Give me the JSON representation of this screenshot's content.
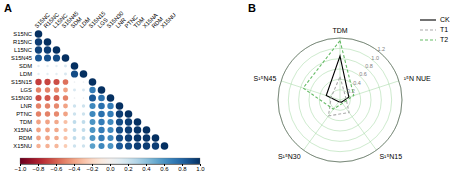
{
  "chart_data": [
    {
      "type": "heatmap",
      "title": "A",
      "categories": [
        "S15NC",
        "R15NC",
        "L15NC",
        "S15N45",
        "SDM",
        "LDM",
        "S15N15",
        "LGS",
        "S15N30",
        "LNR",
        "PTNC",
        "TDM",
        "X15NA",
        "RDM",
        "X15NU"
      ],
      "values": [
        [
          1.0
        ],
        [
          0.95,
          1.0
        ],
        [
          0.93,
          0.95,
          1.0
        ],
        [
          0.85,
          0.88,
          0.9,
          1.0
        ],
        [
          0.1,
          0.1,
          0.1,
          0.15,
          1.0
        ],
        [
          0.1,
          0.1,
          0.1,
          0.15,
          0.9,
          1.0
        ],
        [
          -0.7,
          -0.68,
          -0.65,
          -0.55,
          0.05,
          0.05,
          1.0
        ],
        [
          -0.5,
          -0.5,
          -0.48,
          -0.4,
          0.15,
          0.15,
          0.7,
          1.0
        ],
        [
          -0.65,
          -0.62,
          -0.6,
          -0.5,
          0.05,
          0.05,
          0.85,
          0.75,
          1.0
        ],
        [
          -0.5,
          -0.5,
          -0.48,
          -0.4,
          0.2,
          0.2,
          0.65,
          0.75,
          0.7,
          1.0
        ],
        [
          -0.5,
          -0.5,
          -0.48,
          -0.4,
          0.2,
          0.2,
          0.65,
          0.75,
          0.7,
          0.95,
          1.0
        ],
        [
          -0.4,
          -0.4,
          -0.38,
          -0.3,
          0.25,
          0.25,
          0.6,
          0.7,
          0.65,
          0.9,
          0.95,
          1.0
        ],
        [
          -0.4,
          -0.4,
          -0.38,
          -0.3,
          0.25,
          0.25,
          0.6,
          0.7,
          0.65,
          0.9,
          0.95,
          0.98,
          1.0
        ],
        [
          -0.4,
          -0.4,
          -0.38,
          -0.3,
          0.25,
          0.25,
          0.6,
          0.7,
          0.65,
          0.9,
          0.95,
          0.98,
          0.98,
          1.0
        ],
        [
          -0.35,
          -0.35,
          -0.33,
          -0.25,
          0.2,
          0.2,
          0.55,
          0.65,
          0.6,
          0.85,
          0.9,
          0.95,
          0.95,
          0.95,
          1.0
        ]
      ],
      "colorbar_range": [
        -1,
        1
      ],
      "colorbar_ticks": [
        {
          "value": -1,
          "label": "−1.0"
        },
        {
          "value": -0.8,
          "label": "−0.8"
        },
        {
          "value": -0.6,
          "label": "−0.6"
        },
        {
          "value": -0.4,
          "label": "−0.4"
        },
        {
          "value": -0.2,
          "label": "−0.2"
        },
        {
          "value": 0,
          "label": "0.0"
        },
        0.2,
        0.4,
        0.6,
        0.8,
        {
          "value": 1.0,
          "label": "1.0"
        }
      ]
    },
    {
      "type": "radar",
      "title": "B",
      "categories": [
        "TDM",
        "¹⁵N NUE",
        "S¹⁵N15",
        "S¹⁵N30",
        "S¹⁵N45"
      ],
      "series": [
        {
          "name": "CK",
          "color": "black",
          "line_style": "solid",
          "values": [
            0.85,
            0.18,
            0.05,
            0.04,
            0.28
          ]
        },
        {
          "name": "T1",
          "color": "#aaaaaa",
          "line_style": "dashed",
          "values": [
            0.45,
            0.12,
            0.3,
            0.38,
            0.18
          ]
        },
        {
          "name": "T2",
          "color": "#66bb66",
          "line_style": "dashed",
          "values": [
            1.15,
            0.28,
            0.08,
            0.22,
            0.75
          ]
        }
      ],
      "ylim": [
        0,
        1.2
      ],
      "yticks": [
        0.2,
        0.4,
        0.6,
        0.8,
        {
          "value": 1.0,
          "label": "1.0"
        },
        1.2
      ],
      "grid": true,
      "legend": "right"
    }
  ]
}
